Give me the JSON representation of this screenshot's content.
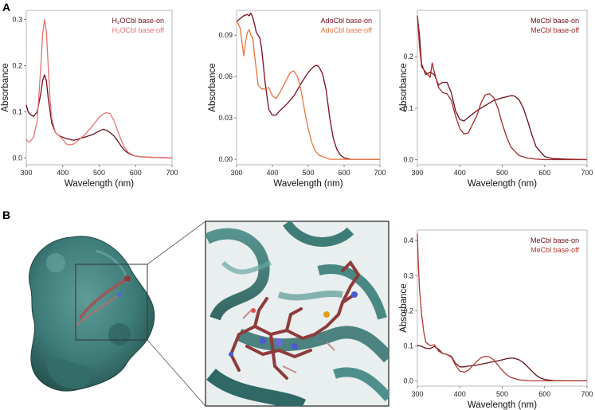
{
  "panel_labels": {
    "a": "A",
    "b": "B"
  },
  "chart_data": [
    {
      "id": "h2ocbl",
      "type": "line",
      "xlabel": "Wavelength (nm)",
      "ylabel": "Absorbance",
      "xlim": [
        300,
        700
      ],
      "ylim": [
        -0.015,
        0.32
      ],
      "xticks": [
        300,
        400,
        500,
        600,
        700
      ],
      "yticks": [
        0.0,
        0.1,
        0.2,
        0.3
      ],
      "ytick_labels": [
        "0.0",
        "0.1",
        "0.2",
        "0.3"
      ],
      "legend_position": "top-right",
      "series": [
        {
          "name": "H₂OCbl base-on",
          "color": "#6b0f1a",
          "x": [
            300,
            305,
            310,
            320,
            330,
            340,
            345,
            350,
            355,
            360,
            370,
            380,
            390,
            400,
            410,
            420,
            430,
            440,
            460,
            480,
            500,
            510,
            520,
            530,
            540,
            550,
            560,
            570,
            580,
            590,
            600,
            620,
            650,
            700
          ],
          "y": [
            0.115,
            0.1,
            0.095,
            0.09,
            0.1,
            0.14,
            0.168,
            0.18,
            0.168,
            0.13,
            0.075,
            0.055,
            0.048,
            0.045,
            0.042,
            0.04,
            0.038,
            0.04,
            0.045,
            0.05,
            0.058,
            0.062,
            0.06,
            0.055,
            0.048,
            0.038,
            0.026,
            0.016,
            0.01,
            0.006,
            0.004,
            0.002,
            0.001,
            0.0
          ]
        },
        {
          "name": "H₂OCbl base-off",
          "color": "#e87070",
          "x": [
            300,
            305,
            310,
            320,
            330,
            340,
            345,
            350,
            355,
            360,
            365,
            370,
            380,
            390,
            400,
            410,
            420,
            430,
            440,
            460,
            480,
            500,
            510,
            520,
            530,
            540,
            550,
            560,
            570,
            580,
            590,
            600,
            620,
            650,
            700
          ],
          "y": [
            0.04,
            0.035,
            0.035,
            0.045,
            0.08,
            0.2,
            0.27,
            0.3,
            0.275,
            0.2,
            0.13,
            0.085,
            0.055,
            0.048,
            0.04,
            0.03,
            0.028,
            0.03,
            0.036,
            0.05,
            0.068,
            0.088,
            0.095,
            0.098,
            0.096,
            0.082,
            0.06,
            0.04,
            0.022,
            0.012,
            0.007,
            0.004,
            0.002,
            0.001,
            0.0
          ]
        }
      ]
    },
    {
      "id": "adocbl",
      "type": "line",
      "xlabel": "Wavelength (nm)",
      "ylabel": "Absorbance",
      "xlim": [
        300,
        700
      ],
      "ylim": [
        -0.004,
        0.108
      ],
      "xticks": [
        300,
        400,
        500,
        600,
        700
      ],
      "yticks": [
        0.0,
        0.03,
        0.06,
        0.09
      ],
      "ytick_labels": [
        "0.00",
        "0.03",
        "0.06",
        "0.09"
      ],
      "legend_position": "top-right",
      "series": [
        {
          "name": "AdoCbl base-on",
          "color": "#7a0c1e",
          "x": [
            300,
            310,
            320,
            330,
            335,
            340,
            345,
            350,
            355,
            360,
            365,
            370,
            380,
            390,
            400,
            410,
            420,
            440,
            460,
            480,
            500,
            510,
            520,
            525,
            530,
            540,
            550,
            560,
            570,
            580,
            590,
            600,
            620,
            650,
            700
          ],
          "y": [
            0.1,
            0.102,
            0.104,
            0.105,
            0.104,
            0.106,
            0.103,
            0.098,
            0.092,
            0.09,
            0.088,
            0.08,
            0.055,
            0.036,
            0.032,
            0.032,
            0.035,
            0.04,
            0.046,
            0.055,
            0.063,
            0.066,
            0.068,
            0.068,
            0.067,
            0.062,
            0.05,
            0.03,
            0.015,
            0.007,
            0.003,
            0.001,
            0.0,
            0.0,
            0.0
          ]
        },
        {
          "name": "AdoCbl base-off",
          "color": "#e8743b",
          "x": [
            300,
            305,
            310,
            315,
            320,
            325,
            330,
            335,
            340,
            345,
            350,
            355,
            360,
            370,
            380,
            390,
            400,
            410,
            420,
            440,
            450,
            460,
            470,
            480,
            490,
            500,
            510,
            520,
            530,
            540,
            550,
            560,
            580,
            600,
            650,
            700
          ],
          "y": [
            0.1,
            0.098,
            0.095,
            0.085,
            0.075,
            0.085,
            0.092,
            0.094,
            0.09,
            0.088,
            0.076,
            0.065,
            0.054,
            0.051,
            0.051,
            0.052,
            0.046,
            0.044,
            0.048,
            0.058,
            0.063,
            0.064,
            0.06,
            0.05,
            0.035,
            0.022,
            0.012,
            0.006,
            0.003,
            0.002,
            0.001,
            0.0,
            0.0,
            0.0,
            0.0,
            0.0
          ]
        }
      ]
    },
    {
      "id": "mecbl-a",
      "type": "line",
      "xlabel": "Wavelength (nm)",
      "ylabel": "Absorbance",
      "xlim": [
        300,
        700
      ],
      "ylim": [
        -0.01,
        0.29
      ],
      "xticks": [
        300,
        400,
        500,
        600,
        700
      ],
      "yticks": [
        0.0,
        0.1,
        0.2
      ],
      "ytick_labels": [
        "0.0",
        "0.1",
        "0.2"
      ],
      "legend_position": "top-right",
      "series": [
        {
          "name": "MeCbl base-on",
          "color": "#6b0f1a",
          "x": [
            300,
            305,
            310,
            320,
            330,
            340,
            350,
            360,
            370,
            380,
            390,
            400,
            410,
            420,
            440,
            460,
            480,
            500,
            510,
            520,
            525,
            530,
            540,
            550,
            560,
            570,
            580,
            600,
            620,
            650,
            700
          ],
          "y": [
            0.28,
            0.24,
            0.185,
            0.165,
            0.17,
            0.165,
            0.145,
            0.15,
            0.15,
            0.13,
            0.095,
            0.078,
            0.075,
            0.082,
            0.095,
            0.105,
            0.115,
            0.12,
            0.122,
            0.124,
            0.124,
            0.123,
            0.116,
            0.1,
            0.075,
            0.048,
            0.025,
            0.006,
            0.002,
            0.001,
            0.0
          ]
        },
        {
          "name": "MeCbl base-off",
          "color": "#a52a2a",
          "x": [
            300,
            305,
            310,
            320,
            330,
            335,
            340,
            350,
            360,
            370,
            380,
            390,
            400,
            410,
            420,
            440,
            450,
            460,
            470,
            480,
            490,
            500,
            510,
            520,
            540,
            560,
            580,
            600,
            650,
            700
          ],
          "y": [
            0.28,
            0.22,
            0.18,
            0.17,
            0.16,
            0.188,
            0.17,
            0.14,
            0.13,
            0.128,
            0.115,
            0.085,
            0.06,
            0.05,
            0.052,
            0.085,
            0.11,
            0.126,
            0.128,
            0.12,
            0.1,
            0.07,
            0.045,
            0.025,
            0.008,
            0.003,
            0.001,
            0.0,
            0.0,
            0.0
          ]
        }
      ]
    },
    {
      "id": "mecbl-b",
      "type": "line",
      "xlabel": "Wavelength (nm)",
      "ylabel": "Absorbance",
      "xlim": [
        300,
        700
      ],
      "ylim": [
        -0.015,
        0.43
      ],
      "xticks": [
        300,
        400,
        500,
        600,
        700
      ],
      "yticks": [
        0.0,
        0.1,
        0.2,
        0.3,
        0.4
      ],
      "ytick_labels": [
        "0.0",
        "0.1",
        "0.2",
        "0.3",
        "0.4"
      ],
      "legend_position": "top-right",
      "series": [
        {
          "name": "MeCbl base-on",
          "color": "#6b0f1a",
          "x": [
            300,
            305,
            310,
            320,
            330,
            340,
            350,
            360,
            370,
            380,
            390,
            400,
            410,
            420,
            440,
            460,
            480,
            500,
            510,
            520,
            525,
            530,
            540,
            550,
            560,
            570,
            580,
            590,
            600,
            620,
            650,
            700
          ],
          "y": [
            0.1,
            0.1,
            0.098,
            0.093,
            0.092,
            0.098,
            0.09,
            0.078,
            0.075,
            0.07,
            0.05,
            0.04,
            0.04,
            0.042,
            0.045,
            0.05,
            0.055,
            0.06,
            0.063,
            0.065,
            0.065,
            0.064,
            0.06,
            0.052,
            0.04,
            0.028,
            0.016,
            0.008,
            0.004,
            0.001,
            0.0,
            0.0
          ]
        },
        {
          "name": "MeCbl base-off",
          "color": "#b03a2e",
          "x": [
            300,
            302,
            305,
            310,
            315,
            320,
            330,
            340,
            350,
            360,
            370,
            380,
            390,
            400,
            410,
            420,
            440,
            450,
            460,
            470,
            480,
            490,
            500,
            510,
            520,
            540,
            560,
            580,
            600,
            650,
            700
          ],
          "y": [
            0.42,
            0.34,
            0.26,
            0.19,
            0.14,
            0.11,
            0.1,
            0.103,
            0.085,
            0.078,
            0.075,
            0.068,
            0.045,
            0.028,
            0.025,
            0.03,
            0.055,
            0.066,
            0.07,
            0.068,
            0.06,
            0.045,
            0.03,
            0.018,
            0.01,
            0.003,
            0.001,
            0.0,
            0.0,
            0.0,
            0.0
          ]
        }
      ]
    }
  ]
}
